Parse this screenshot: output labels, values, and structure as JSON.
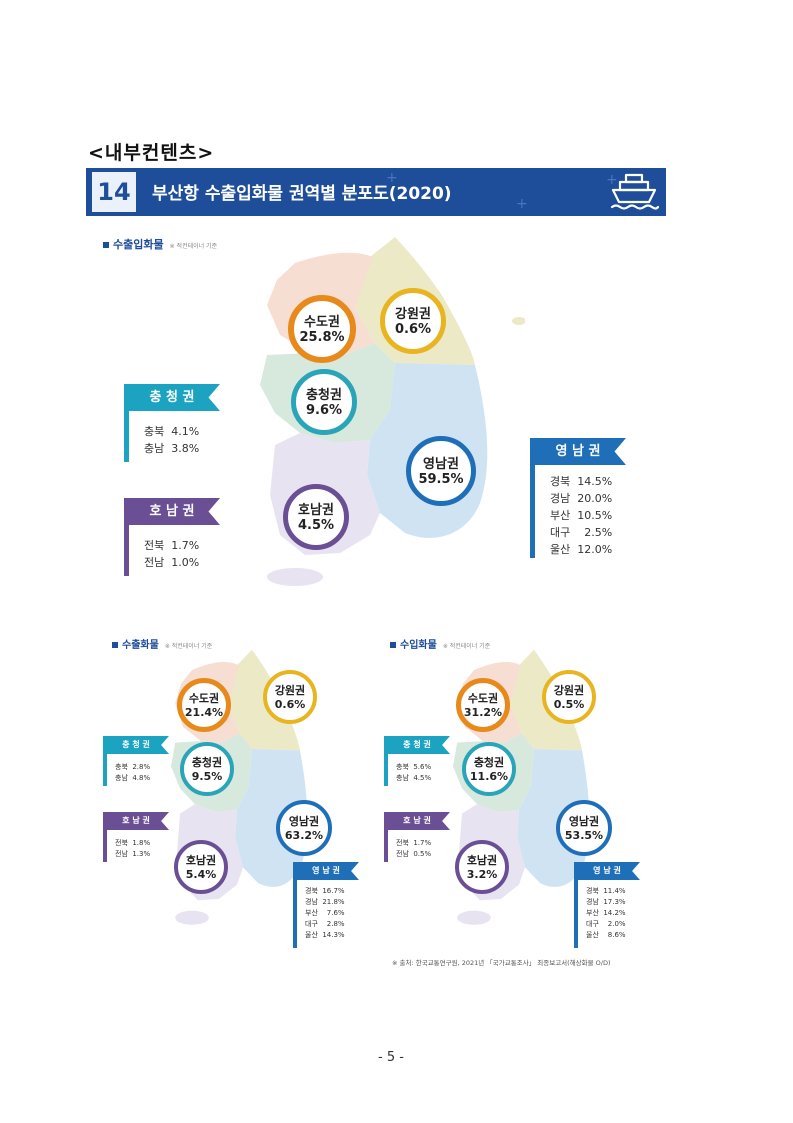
{
  "heading": "<내부컨텐츠>",
  "banner": {
    "number": "14",
    "title": "부산항 수출입화물 권역별 분포도(2020)"
  },
  "colors": {
    "navy": "#1e4d9a",
    "teal": "#1ca3c2",
    "purple": "#6a4f95",
    "orange": "#e8891b",
    "yellow": "#e8b420",
    "green": "#2aa4b8"
  },
  "maps": {
    "main": {
      "label": "수출입화물",
      "note": "※ 적컨테이너 기준",
      "circles": {
        "sudo": {
          "name": "수도권",
          "pct": "25.8%"
        },
        "gangwon": {
          "name": "강원권",
          "pct": "0.6%"
        },
        "chungcheong": {
          "name": "충청권",
          "pct": "9.6%"
        },
        "yeongnam": {
          "name": "영남권",
          "pct": "59.5%"
        },
        "honam": {
          "name": "호남권",
          "pct": "4.5%"
        }
      },
      "flags": {
        "chungcheong": {
          "title": "충 청 권",
          "rows": [
            "충북  4.1%",
            "충남  3.8%"
          ]
        },
        "honam": {
          "title": "호 남 권",
          "rows": [
            "전북  1.7%",
            "전남  1.0%"
          ]
        },
        "yeongnam": {
          "title": "영 남 권",
          "rows": [
            "경북  14.5%",
            "경남  20.0%",
            "부산  10.5%",
            "대구    2.5%",
            "울산  12.0%"
          ]
        }
      }
    },
    "export": {
      "label": "수출화물",
      "note": "※ 적컨테이너 기준",
      "circles": {
        "sudo": {
          "name": "수도권",
          "pct": "21.4%"
        },
        "gangwon": {
          "name": "강원권",
          "pct": "0.6%"
        },
        "chungcheong": {
          "name": "충청권",
          "pct": "9.5%"
        },
        "yeongnam": {
          "name": "영남권",
          "pct": "63.2%"
        },
        "honam": {
          "name": "호남권",
          "pct": "5.4%"
        }
      },
      "flags": {
        "chungcheong": {
          "title": "충 청 권",
          "rows": [
            "충북  2.8%",
            "충남  4.8%"
          ]
        },
        "honam": {
          "title": "호 남 권",
          "rows": [
            "전북  1.8%",
            "전남  1.3%"
          ]
        },
        "yeongnam": {
          "title": "영 남 권",
          "rows": [
            "경북  16.7%",
            "경남  21.8%",
            "부산    7.6%",
            "대구    2.8%",
            "울산  14.3%"
          ]
        }
      }
    },
    "import": {
      "label": "수입화물",
      "note": "※ 적컨테이너 기준",
      "circles": {
        "sudo": {
          "name": "수도권",
          "pct": "31.2%"
        },
        "gangwon": {
          "name": "강원권",
          "pct": "0.5%"
        },
        "chungcheong": {
          "name": "충청권",
          "pct": "11.6%"
        },
        "yeongnam": {
          "name": "영남권",
          "pct": "53.5%"
        },
        "honam": {
          "name": "호남권",
          "pct": "3.2%"
        }
      },
      "flags": {
        "chungcheong": {
          "title": "충 청 권",
          "rows": [
            "충북  5.6%",
            "충남  4.5%"
          ]
        },
        "honam": {
          "title": "호 남 권",
          "rows": [
            "전북  1.7%",
            "전남  0.5%"
          ]
        },
        "yeongnam": {
          "title": "영 남 권",
          "rows": [
            "경북  11.4%",
            "경남  17.3%",
            "부산  14.2%",
            "대구    2.0%",
            "울산    8.6%"
          ]
        }
      }
    }
  },
  "source": "※ 출처: 한국교통연구원, 2021년 「국가교통조사」 최종보고서(해상화물 O/D)",
  "page_number": "- 5 -"
}
